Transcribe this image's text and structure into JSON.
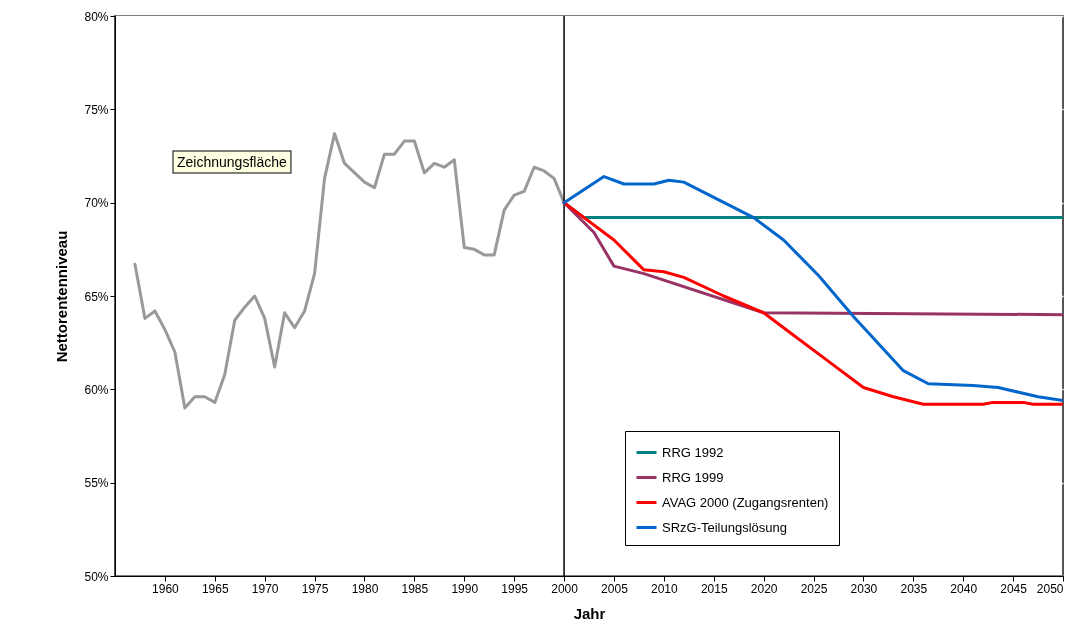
{
  "chart_data": {
    "type": "line",
    "xlabel": "Jahr",
    "ylabel": "Nettorentenniveau",
    "xlim": [
      1955,
      2050
    ],
    "xticks": [
      1960,
      1965,
      1970,
      1975,
      1980,
      1985,
      1990,
      1995,
      2000,
      2005,
      2010,
      2015,
      2020,
      2025,
      2030,
      2035,
      2040,
      2045,
      2050
    ],
    "ylim": [
      50,
      80
    ],
    "yticks": [
      {
        "value": 50,
        "label": "50%"
      },
      {
        "value": 55,
        "label": "55%"
      },
      {
        "value": 60,
        "label": "60%"
      },
      {
        "value": 65,
        "label": "65%"
      },
      {
        "value": 70,
        "label": "70%"
      },
      {
        "value": 75,
        "label": "75%"
      },
      {
        "value": 80,
        "label": "80%"
      }
    ],
    "grid": "y",
    "legend": "bottom right",
    "annotations": [
      "Zeichnungsfläche"
    ],
    "ref_lines": [
      {
        "axis": "x",
        "value": 2000,
        "color": "#000000"
      }
    ],
    "series": [
      {
        "color": "#999999",
        "x": [
          1957,
          1958,
          1959,
          1960,
          1961,
          1962,
          1963,
          1964,
          1965,
          1966,
          1967,
          1968,
          1969,
          1970,
          1971,
          1972,
          1973,
          1974,
          1975,
          1976,
          1977,
          1978,
          1980,
          1981,
          1982,
          1983,
          1984,
          1985,
          1986,
          1987,
          1988,
          1989,
          1990,
          1991,
          1992,
          1993,
          1994,
          1995,
          1996,
          1997,
          1998,
          1999,
          2000
        ],
        "values": [
          66.7,
          63.8,
          64.2,
          63.2,
          62.0,
          59.0,
          59.6,
          59.6,
          59.3,
          60.8,
          63.7,
          64.4,
          65.0,
          63.8,
          61.2,
          64.1,
          63.3,
          64.2,
          66.2,
          71.3,
          73.7,
          72.1,
          71.1,
          70.8,
          72.6,
          72.6,
          73.3,
          73.3,
          71.6,
          72.1,
          71.9,
          72.3,
          67.6,
          67.5,
          67.2,
          67.2,
          69.6,
          70.4,
          70.6,
          71.9,
          71.7,
          71.3,
          70.0
        ]
      },
      {
        "name": "RRG 1992",
        "color": "#008080",
        "x": [
          2000,
          2002,
          2050
        ],
        "values": [
          70.0,
          69.2,
          69.2
        ]
      },
      {
        "name": "RRG 1999",
        "color": "#993366",
        "x": [
          2000,
          2003,
          2005,
          2008,
          2020,
          2050
        ],
        "values": [
          70.0,
          68.4,
          66.6,
          66.2,
          64.1,
          64.0
        ]
      },
      {
        "name": "AVAG 2000 (Zugangsrenten)",
        "color": "#ff0000",
        "x": [
          2000,
          2005,
          2008,
          2010,
          2012,
          2016,
          2020,
          2023,
          2026,
          2030,
          2033,
          2036,
          2042,
          2043,
          2046,
          2047,
          2050
        ],
        "values": [
          70.0,
          68.0,
          66.4,
          66.3,
          66.0,
          65.0,
          64.1,
          62.9,
          61.7,
          60.1,
          59.6,
          59.2,
          59.2,
          59.3,
          59.3,
          59.2,
          59.2
        ]
      },
      {
        "name": "SRzG-Teilungslösung",
        "color": "#0066cc",
        "x": [
          2000,
          2004,
          2006,
          2009,
          2010.5,
          2012,
          2019,
          2022,
          2025.5,
          2029,
          2034,
          2036.5,
          2041,
          2043.5,
          2047.5,
          2050
        ],
        "values": [
          70.0,
          71.4,
          71.0,
          71.0,
          71.2,
          71.1,
          69.2,
          68.0,
          66.1,
          63.9,
          61.0,
          60.3,
          60.2,
          60.1,
          59.6,
          59.4
        ]
      }
    ]
  }
}
